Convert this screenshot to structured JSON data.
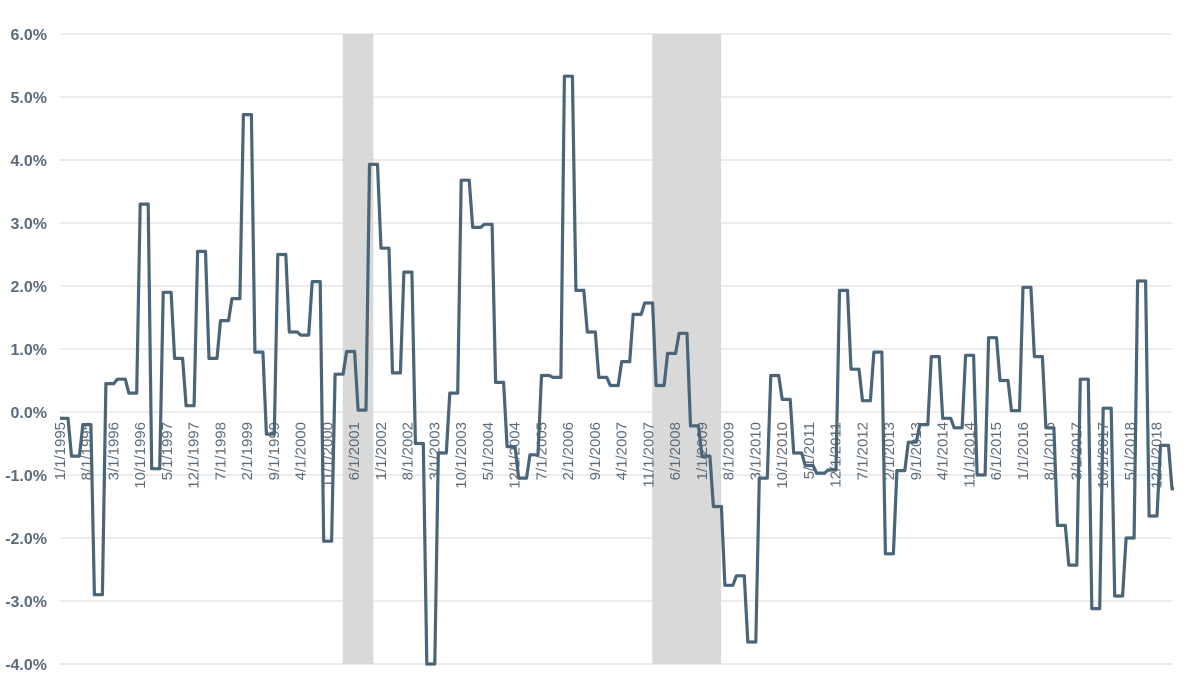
{
  "chart_data": {
    "type": "line",
    "title": "",
    "xlabel": "",
    "ylabel": "",
    "ylim": [
      -4.0,
      6.0
    ],
    "y_ticks": [
      "6.0%",
      "5.0%",
      "4.0%",
      "3.0%",
      "2.0%",
      "1.0%",
      "0.0%",
      "-1.0%",
      "-2.0%",
      "-3.0%",
      "-4.0%"
    ],
    "x_start": "1995-01",
    "x_end": "2019-04",
    "x_ticks": [
      "1/1/1995",
      "8/1/1995",
      "3/1/1996",
      "10/1/1996",
      "5/1/1997",
      "12/1/1997",
      "7/1/1998",
      "2/1/1999",
      "9/1/1999",
      "4/1/2000",
      "11/1/2000",
      "6/1/2001",
      "1/1/2002",
      "8/1/2002",
      "3/1/2003",
      "10/1/2003",
      "5/1/2004",
      "12/1/2004",
      "7/1/2005",
      "2/1/2006",
      "9/1/2006",
      "4/1/2007",
      "11/1/2007",
      "6/1/2008",
      "1/1/2009",
      "8/1/2009",
      "3/1/2010",
      "10/1/2010",
      "5/1/2011",
      "12/1/2011",
      "7/1/2012",
      "2/1/2013",
      "9/1/2013",
      "4/1/2014",
      "11/1/2014",
      "6/1/2015",
      "1/1/2016",
      "8/1/2016",
      "3/1/2017",
      "10/1/2017",
      "5/1/2018",
      "12/1/2018"
    ],
    "recessions": [
      [
        "2001-03",
        "2001-11"
      ],
      [
        "2007-12",
        "2009-06"
      ]
    ],
    "grid": true,
    "colors": {
      "line": "#4a6577",
      "recession": "#d9d9d9",
      "grid": "#d9d9d9",
      "tick": "#5b6b7a"
    },
    "series": [
      {
        "values": [
          [
            "1995-01",
            -0.1
          ],
          [
            "1995-04",
            -0.7
          ],
          [
            "1995-07",
            -0.2
          ],
          [
            "1995-10",
            -2.9
          ],
          [
            "1996-01",
            0.45
          ],
          [
            "1996-04",
            0.52
          ],
          [
            "1996-07",
            0.3
          ],
          [
            "1996-10",
            3.3
          ],
          [
            "1997-01",
            -0.9
          ],
          [
            "1997-04",
            1.9
          ],
          [
            "1997-07",
            0.85
          ],
          [
            "1997-10",
            0.1
          ],
          [
            "1998-01",
            2.55
          ],
          [
            "1998-04",
            0.85
          ],
          [
            "1998-07",
            1.45
          ],
          [
            "1998-10",
            1.8
          ],
          [
            "1999-01",
            4.72
          ],
          [
            "1999-04",
            0.95
          ],
          [
            "1999-07",
            -0.35
          ],
          [
            "1999-10",
            2.5
          ],
          [
            "2000-01",
            1.27
          ],
          [
            "2000-04",
            1.22
          ],
          [
            "2000-07",
            2.07
          ],
          [
            "2000-10",
            -2.05
          ],
          [
            "2001-01",
            0.6
          ],
          [
            "2001-04",
            0.96
          ],
          [
            "2001-07",
            0.03
          ],
          [
            "2001-10",
            3.93
          ],
          [
            "2002-01",
            2.6
          ],
          [
            "2002-04",
            0.62
          ],
          [
            "2002-07",
            2.22
          ],
          [
            "2002-10",
            -0.5
          ],
          [
            "2003-01",
            -4.0
          ],
          [
            "2003-04",
            -0.65
          ],
          [
            "2003-07",
            0.3
          ],
          [
            "2003-10",
            3.68
          ],
          [
            "2004-01",
            2.93
          ],
          [
            "2004-04",
            2.98
          ],
          [
            "2004-07",
            0.47
          ],
          [
            "2004-10",
            -0.55
          ],
          [
            "2005-01",
            -1.05
          ],
          [
            "2005-04",
            -0.68
          ],
          [
            "2005-07",
            0.58
          ],
          [
            "2005-10",
            0.55
          ],
          [
            "2006-01",
            5.33
          ],
          [
            "2006-04",
            1.93
          ],
          [
            "2006-07",
            1.27
          ],
          [
            "2006-10",
            0.55
          ],
          [
            "2007-01",
            0.42
          ],
          [
            "2007-04",
            0.8
          ],
          [
            "2007-07",
            1.55
          ],
          [
            "2007-10",
            1.73
          ],
          [
            "2008-01",
            0.42
          ],
          [
            "2008-04",
            0.93
          ],
          [
            "2008-07",
            1.25
          ],
          [
            "2008-10",
            -0.22
          ],
          [
            "2009-01",
            -0.7
          ],
          [
            "2009-04",
            -1.5
          ],
          [
            "2009-07",
            -2.75
          ],
          [
            "2009-10",
            -2.6
          ],
          [
            "2010-01",
            -3.65
          ],
          [
            "2010-04",
            -1.05
          ],
          [
            "2010-07",
            0.58
          ],
          [
            "2010-10",
            0.2
          ],
          [
            "2011-01",
            -0.65
          ],
          [
            "2011-04",
            -0.85
          ],
          [
            "2011-07",
            -0.97
          ],
          [
            "2011-10",
            -0.92
          ],
          [
            "2012-01",
            1.93
          ],
          [
            "2012-04",
            0.68
          ],
          [
            "2012-07",
            0.18
          ],
          [
            "2012-10",
            0.95
          ],
          [
            "2013-01",
            -2.25
          ],
          [
            "2013-04",
            -0.93
          ],
          [
            "2013-07",
            -0.48
          ],
          [
            "2013-10",
            -0.2
          ],
          [
            "2014-01",
            0.88
          ],
          [
            "2014-04",
            -0.1
          ],
          [
            "2014-07",
            -0.25
          ],
          [
            "2014-10",
            0.9
          ],
          [
            "2015-01",
            -1.0
          ],
          [
            "2015-04",
            1.18
          ],
          [
            "2015-07",
            0.5
          ],
          [
            "2015-10",
            0.02
          ],
          [
            "2016-01",
            1.98
          ],
          [
            "2016-04",
            0.88
          ],
          [
            "2016-07",
            -0.25
          ],
          [
            "2016-10",
            -1.8
          ],
          [
            "2017-01",
            -2.43
          ],
          [
            "2017-04",
            0.52
          ],
          [
            "2017-07",
            -3.12
          ],
          [
            "2017-10",
            0.06
          ],
          [
            "2018-01",
            -2.92
          ],
          [
            "2018-04",
            -2.0
          ],
          [
            "2018-07",
            2.08
          ],
          [
            "2018-10",
            -1.65
          ],
          [
            "2019-01",
            -0.53
          ],
          [
            "2019-04",
            -1.22
          ]
        ]
      }
    ]
  }
}
